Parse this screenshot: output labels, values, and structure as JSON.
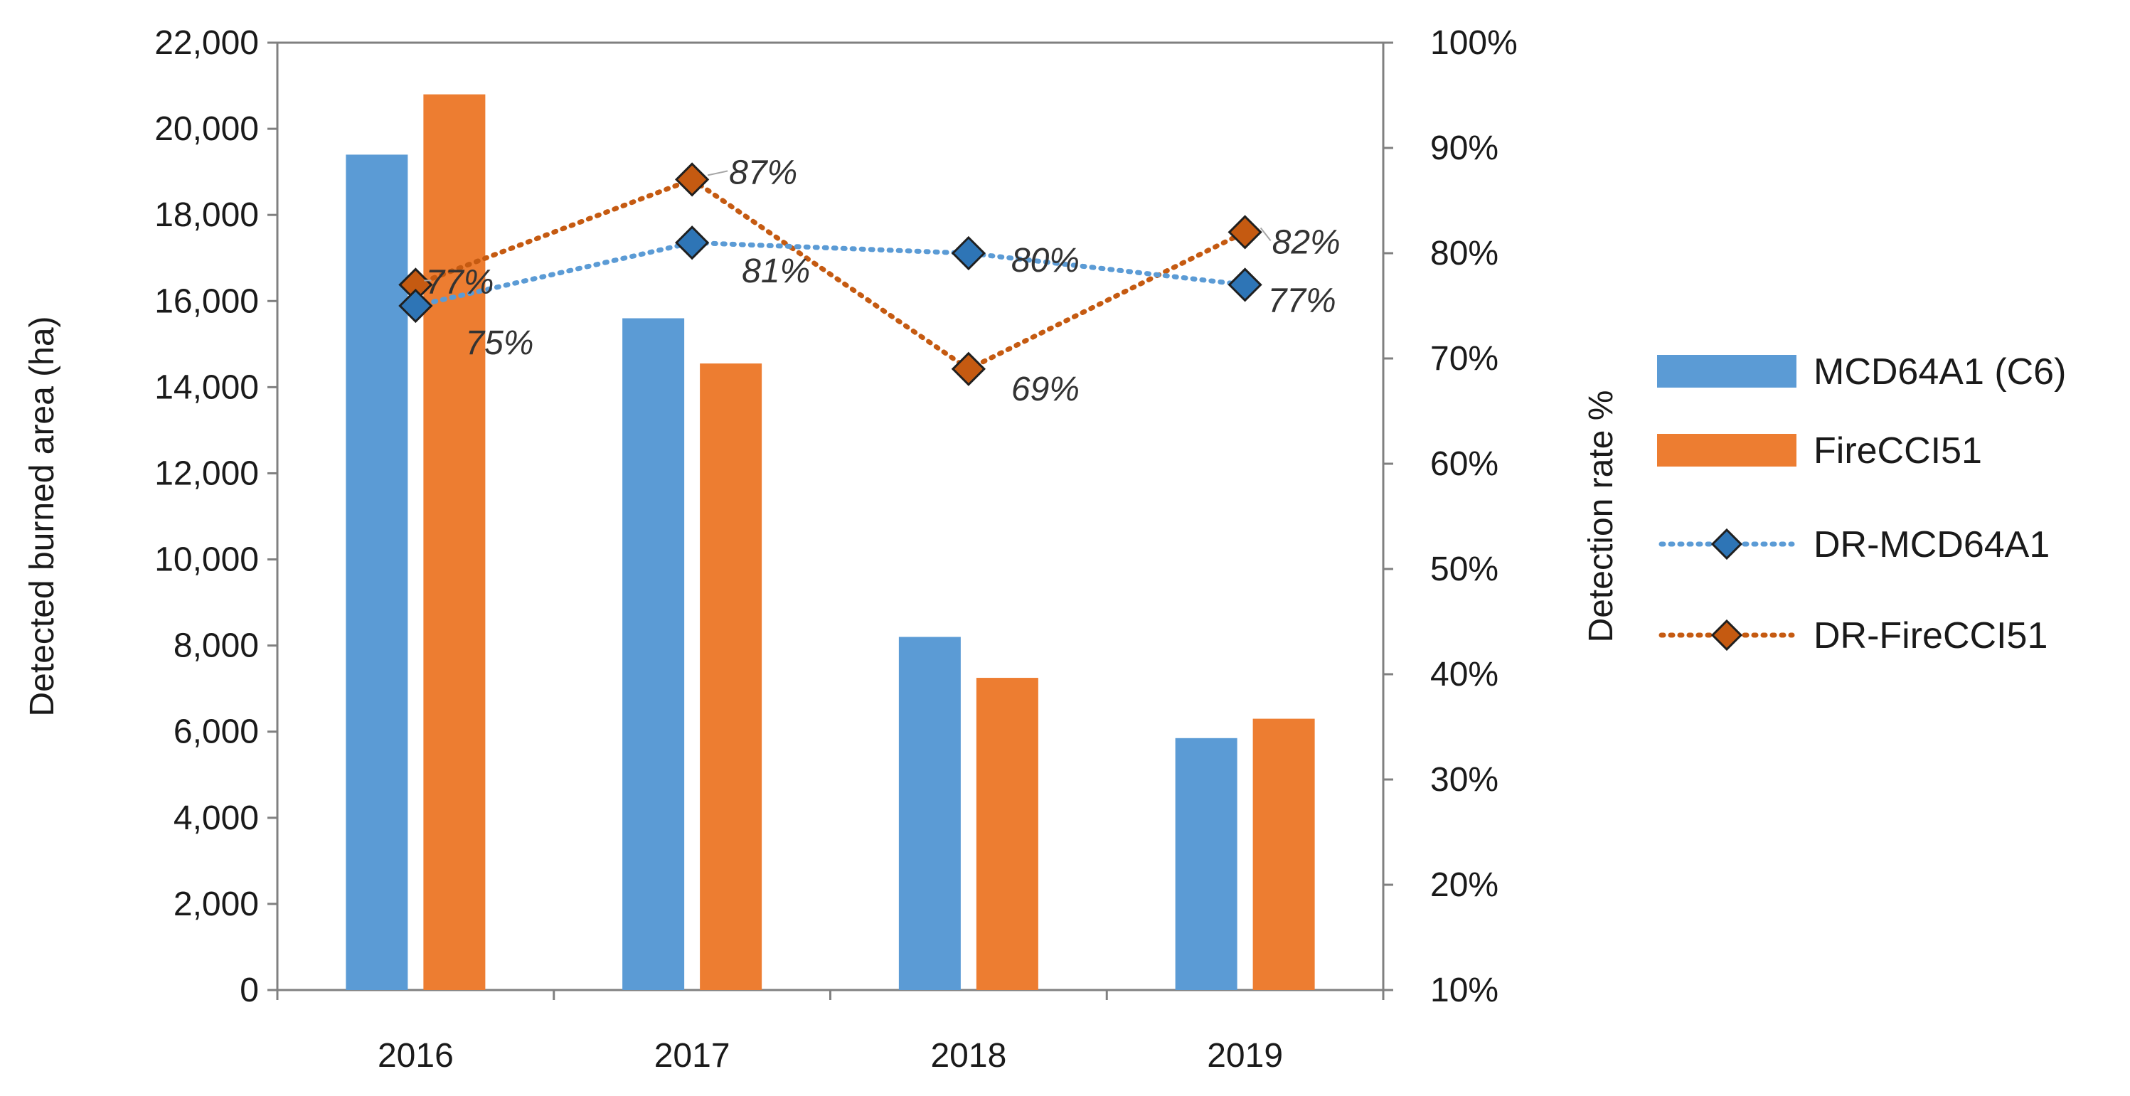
{
  "chart_data": {
    "type": "bar",
    "categories": [
      "2016",
      "2017",
      "2018",
      "2019"
    ],
    "y_left": {
      "label": "Detected burned area (ha)",
      "lim": [
        0,
        22000
      ],
      "ticks": [
        0,
        2000,
        4000,
        6000,
        8000,
        10000,
        12000,
        14000,
        16000,
        18000,
        20000,
        22000
      ],
      "tick_labels": [
        "0",
        "2,000",
        "4,000",
        "6,000",
        "8,000",
        "10,000",
        "12,000",
        "14,000",
        "16,000",
        "18,000",
        "20,000",
        "22,000"
      ]
    },
    "y_right": {
      "label": "Detection rate %",
      "lim": [
        10,
        100
      ],
      "ticks": [
        10,
        20,
        30,
        40,
        50,
        60,
        70,
        80,
        90,
        100
      ],
      "tick_labels": [
        "10%",
        "20%",
        "30%",
        "40%",
        "50%",
        "60%",
        "70%",
        "80%",
        "90%",
        "100%"
      ]
    },
    "bar_series": [
      {
        "name": "MCD64A1 (C6)",
        "color": "#5b9bd5",
        "values": [
          19400,
          15600,
          8200,
          5850
        ]
      },
      {
        "name": "FireCCI51",
        "color": "#ed7d31",
        "values": [
          20800,
          14550,
          7250,
          6300
        ]
      }
    ],
    "line_series": [
      {
        "name": "DR-MCD64A1",
        "color": "#5b9bd5",
        "marker_color": "#2e75b6",
        "values": [
          75,
          81,
          80,
          77
        ],
        "labels": [
          "75%",
          "81%",
          "80%",
          "77%"
        ]
      },
      {
        "name": "DR-FireCCI51",
        "color": "#c55a11",
        "marker_color": "#c55a11",
        "values": [
          77,
          87,
          69,
          82
        ],
        "labels": [
          "77%",
          "87%",
          "69%",
          "82%"
        ]
      }
    ],
    "legend": {
      "position": "right",
      "items": [
        "MCD64A1 (C6)",
        "FireCCI51",
        "DR-MCD64A1",
        "DR-FireCCI51"
      ]
    }
  }
}
